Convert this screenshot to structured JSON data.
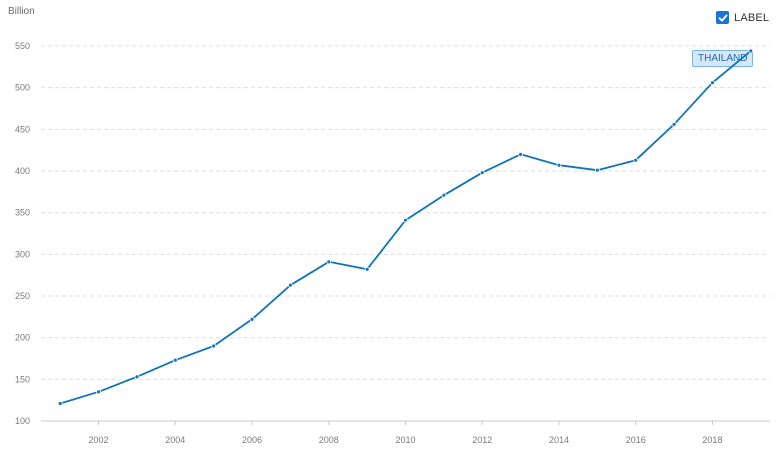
{
  "chart_data": {
    "type": "line",
    "unit_label": "Billion",
    "x": [
      2001,
      2002,
      2003,
      2004,
      2005,
      2006,
      2007,
      2008,
      2009,
      2010,
      2011,
      2012,
      2013,
      2014,
      2015,
      2016,
      2017,
      2018,
      2019
    ],
    "series": [
      {
        "name": "THAILAND",
        "color": "#0f74b8",
        "values": [
          121,
          135,
          153,
          173,
          190,
          222,
          263,
          291,
          282,
          341,
          371,
          398,
          420,
          407,
          401,
          413,
          456,
          506,
          544
        ]
      }
    ],
    "xticks": [
      2002,
      2004,
      2006,
      2008,
      2010,
      2012,
      2014,
      2016,
      2018
    ],
    "yticks": [
      100,
      150,
      200,
      250,
      300,
      350,
      400,
      450,
      500,
      550
    ],
    "xlim": [
      2000.5,
      2019.5
    ],
    "ylim": [
      100,
      562
    ],
    "grid": "horizontal dashed",
    "legend": {
      "label": "LABEL",
      "checked": true,
      "placement": "top-right"
    },
    "series_tag": "THAILAND"
  }
}
